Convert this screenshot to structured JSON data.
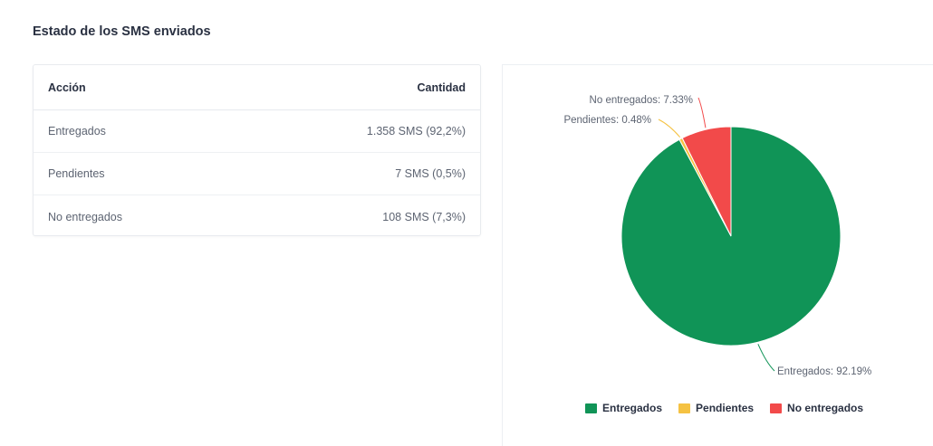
{
  "page": {
    "title": "Estado de los SMS enviados"
  },
  "table": {
    "headers": [
      "Acción",
      "Cantidad"
    ],
    "rows": [
      {
        "action": "Entregados",
        "amount": "1.358 SMS (92,2%)"
      },
      {
        "action": "Pendientes",
        "amount": "7 SMS (0,5%)"
      },
      {
        "action": "No entregados",
        "amount": "108 SMS (7,3%)"
      }
    ]
  },
  "chart_data": {
    "type": "pie",
    "categories": [
      "Entregados",
      "Pendientes",
      "No entregados"
    ],
    "values": [
      92.19,
      0.48,
      7.33
    ],
    "labels": [
      "Entregados: 92.19%",
      "Pendientes: 0.48%",
      "No entregados: 7.33%"
    ],
    "colors": [
      "#109457",
      "#f5c242",
      "#f24a4a"
    ],
    "legend_position": "bottom"
  },
  "legend": {
    "items": [
      {
        "label": "Entregados",
        "color": "#109457"
      },
      {
        "label": "Pendientes",
        "color": "#f5c242"
      },
      {
        "label": "No entregados",
        "color": "#f24a4a"
      }
    ]
  }
}
